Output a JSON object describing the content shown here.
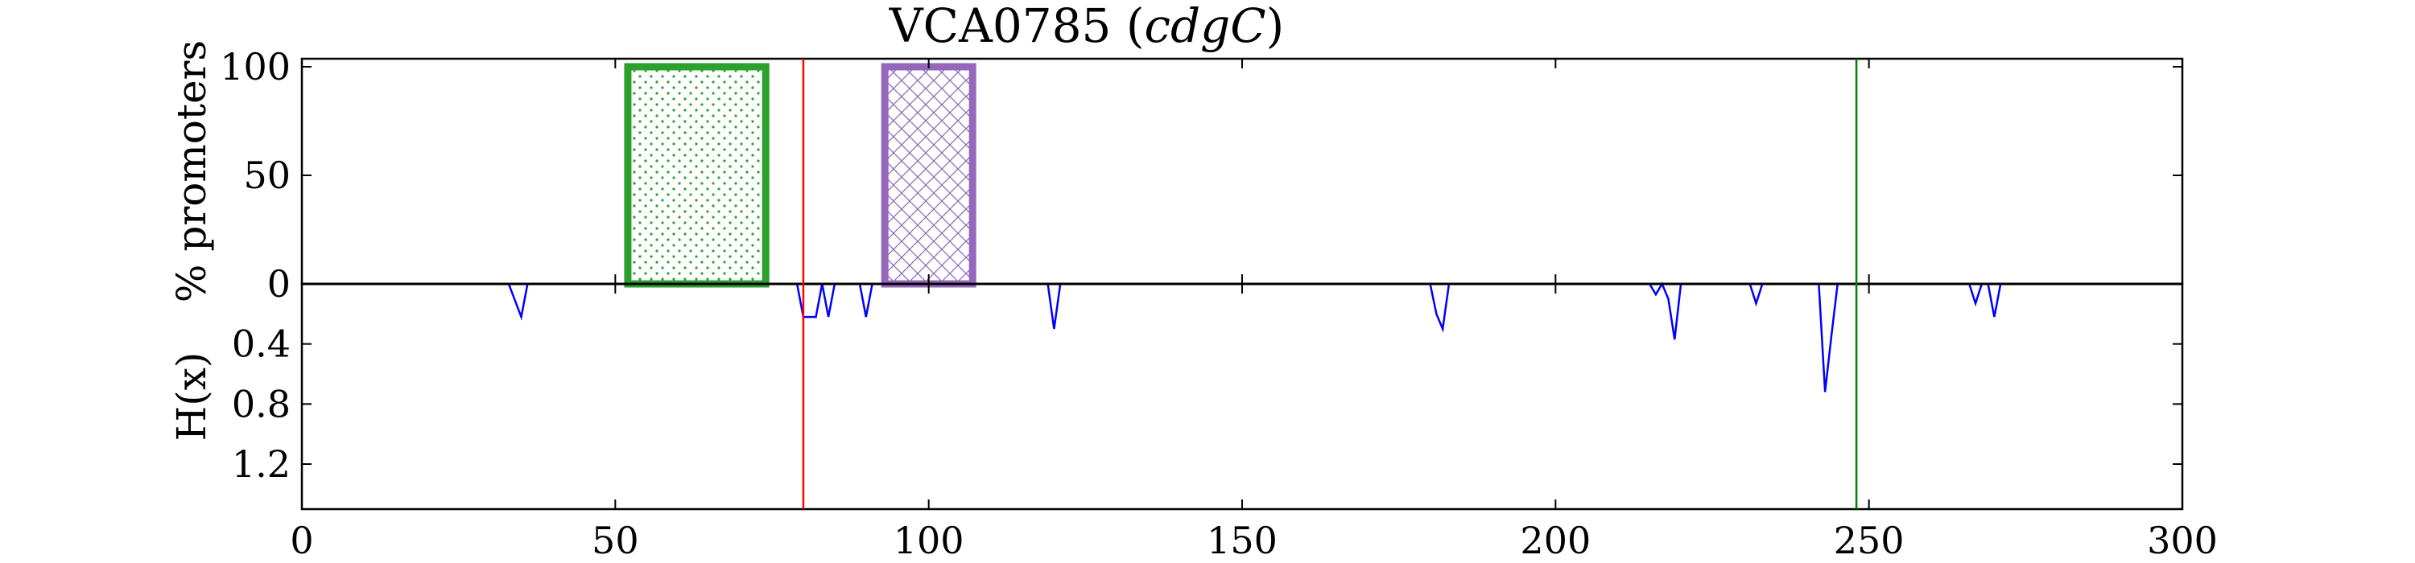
{
  "chart_data": {
    "type": "line",
    "title": "VCA0785",
    "title_gene": "cdgC",
    "x_ticks": [
      "0",
      "50",
      "100",
      "150",
      "200",
      "250",
      "300"
    ],
    "xlim": [
      0,
      300
    ],
    "top_panel": {
      "ylabel": "% promoters",
      "ylim": [
        0,
        100
      ],
      "y_ticks": [
        "0",
        "50",
        "100"
      ],
      "boxes": [
        {
          "name": "dotted-box",
          "x_start": 52,
          "x_end": 74,
          "value": 100,
          "color": "#2ca02c",
          "hatch": "dots"
        },
        {
          "name": "crosshatch-box",
          "x_start": 93,
          "x_end": 107,
          "value": 100,
          "color": "#9467bd",
          "hatch": "cross"
        }
      ]
    },
    "bottom_panel": {
      "ylabel": "H(x)",
      "ylim": [
        0,
        1.5
      ],
      "inverted": true,
      "y_ticks": [
        "0.4",
        "0.8",
        "1.2"
      ],
      "series_color": "#0000ff",
      "x": [
        33,
        35,
        36,
        79,
        80,
        81,
        82,
        83,
        84,
        85,
        89,
        90,
        91,
        119,
        120,
        121,
        180,
        181,
        182,
        183,
        215,
        216,
        217,
        218,
        219,
        220,
        231,
        232,
        233,
        242,
        243,
        244,
        245,
        266,
        267,
        268,
        269,
        270,
        271
      ],
      "y": [
        0,
        0.22,
        0,
        0,
        0.22,
        0.22,
        0.22,
        0,
        0.22,
        0,
        0,
        0.22,
        0,
        0,
        0.3,
        0,
        0,
        0.2,
        0.3,
        0,
        0,
        0.07,
        0,
        0.1,
        0.37,
        0,
        0,
        0.13,
        0,
        0,
        0.72,
        0.35,
        0,
        0,
        0.13,
        0,
        0,
        0.22,
        0
      ]
    },
    "vlines": [
      {
        "x": 80,
        "color": "#ff0000"
      },
      {
        "x": 248,
        "color": "#008000"
      }
    ]
  }
}
